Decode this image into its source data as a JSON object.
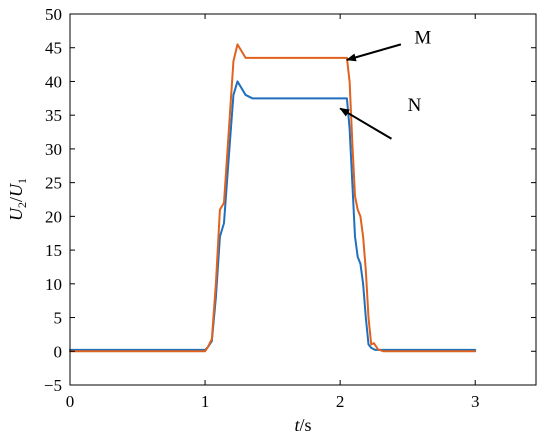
{
  "chart_data": {
    "type": "line",
    "title": "",
    "xlabel": {
      "var": "t",
      "unit": "/s"
    },
    "ylabel": {
      "num": "U",
      "num_sub": "2",
      "slash": "/",
      "den": "U",
      "den_sub": "1"
    },
    "xlim": [
      0,
      3.45
    ],
    "ylim": [
      -5,
      50
    ],
    "xticks": [
      0,
      1,
      2,
      3
    ],
    "yticks": [
      -5,
      0,
      5,
      10,
      15,
      20,
      25,
      30,
      35,
      40,
      45,
      50
    ],
    "grid": false,
    "series": [
      {
        "color": "#1f6fbd",
        "x": [
          0,
          0.4,
          0.8,
          1.0,
          1.02,
          1.05,
          1.08,
          1.11,
          1.14,
          1.18,
          1.21,
          1.24,
          1.27,
          1.3,
          1.35,
          1.5,
          1.7,
          1.9,
          2.05,
          2.07,
          2.09,
          2.11,
          2.13,
          2.15,
          2.17,
          2.19,
          2.21,
          2.23,
          2.26,
          2.3,
          2.5,
          2.8,
          3.0
        ],
        "y": [
          0.2,
          0.2,
          0.2,
          0.2,
          0.6,
          1.5,
          8,
          17,
          19,
          30,
          38,
          40,
          39,
          38,
          37.5,
          37.5,
          37.5,
          37.5,
          37.5,
          33,
          25,
          17,
          14,
          13,
          10,
          5,
          1,
          0.5,
          0.2,
          0.2,
          0.2,
          0.2,
          0.2
        ]
      },
      {
        "color": "#e0621e",
        "x": [
          0,
          0.4,
          0.8,
          1.0,
          1.02,
          1.05,
          1.08,
          1.11,
          1.14,
          1.18,
          1.21,
          1.24,
          1.27,
          1.3,
          1.35,
          1.5,
          1.7,
          1.9,
          2.05,
          2.07,
          2.09,
          2.11,
          2.13,
          2.15,
          2.17,
          2.19,
          2.21,
          2.23,
          2.25,
          2.28,
          2.32,
          2.5,
          2.8,
          3.0
        ],
        "y": [
          0,
          0,
          0,
          0,
          0.6,
          1.8,
          10,
          21,
          22,
          34,
          43,
          45.5,
          44.5,
          43.5,
          43.5,
          43.5,
          43.5,
          43.5,
          43.5,
          40,
          31,
          23,
          21,
          20,
          17,
          12,
          5,
          1,
          1.2,
          0.3,
          0,
          0,
          0,
          0
        ]
      }
    ],
    "annotations": [
      {
        "text": "M",
        "label_at": [
          2.55,
          45.6
        ],
        "arrow_from": [
          2.45,
          45.5
        ],
        "arrow_to": [
          2.05,
          43.2
        ]
      },
      {
        "text": "N",
        "label_at": [
          2.5,
          35.6
        ],
        "arrow_from": [
          2.38,
          31.5
        ],
        "arrow_to": [
          2.0,
          36.0
        ]
      }
    ]
  }
}
